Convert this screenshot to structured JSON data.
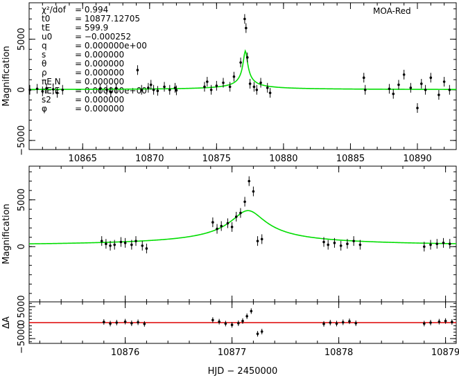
{
  "chart_data": [
    {
      "type": "scatter",
      "panel": "top",
      "label": "MOA-Red",
      "ylabel": "Magnification",
      "xlim": [
        10861.0,
        10892.9
      ],
      "ylim": [
        -5900,
        8600
      ],
      "xticks": [
        10865,
        10870,
        10875,
        10880,
        10885,
        10890
      ],
      "yticks": [
        -5000,
        0,
        5000
      ],
      "params": [
        {
          "name": "χ²/dof",
          "value": "= 0.994"
        },
        {
          "name": "t0",
          "value": "= 10877.12705"
        },
        {
          "name": "tE",
          "value": "= 599.9"
        },
        {
          "name": "u0",
          "value": "= −0.000252"
        },
        {
          "name": "q",
          "value": "= 0.000000e+00"
        },
        {
          "name": "s",
          "value": "= 0.000000"
        },
        {
          "name": "θ",
          "value": "= 0.000000"
        },
        {
          "name": "ρ",
          "value": "= 0.000000"
        },
        {
          "name": "πE,N",
          "value": "= 0.000000"
        },
        {
          "name": "πE,E",
          "value": "= 0.000000e+00"
        },
        {
          "name": "s2",
          "value": "= 0.000000"
        },
        {
          "name": "φ",
          "value": "= 0.000000"
        }
      ],
      "model": {
        "t0": 10877.15,
        "peak": 3850,
        "baseline": 0,
        "tau": 0.45
      },
      "series": [
        {
          "name": "",
          "points": [
            [
              10861.05,
              0
            ],
            [
              10861.6,
              100
            ],
            [
              10862.0,
              -150
            ],
            [
              10862.3,
              150
            ],
            [
              10862.8,
              50
            ],
            [
              10863.1,
              -300
            ],
            [
              10863.5,
              0
            ],
            [
              10866.3,
              100
            ],
            [
              10866.8,
              0
            ],
            [
              10867.1,
              -200
            ],
            [
              10867.5,
              150
            ],
            [
              10869.1,
              1950
            ],
            [
              10869.4,
              0
            ],
            [
              10869.9,
              200
            ],
            [
              10870.1,
              500
            ],
            [
              10870.3,
              0
            ],
            [
              10870.6,
              -100
            ],
            [
              10871.1,
              300
            ],
            [
              10871.5,
              0
            ],
            [
              10871.9,
              200
            ],
            [
              10872.0,
              -50
            ],
            [
              10874.1,
              300
            ],
            [
              10874.3,
              800
            ],
            [
              10874.6,
              0
            ],
            [
              10875.0,
              400
            ],
            [
              10875.5,
              700
            ],
            [
              10876.0,
              300
            ],
            [
              10876.3,
              1300
            ],
            [
              10876.8,
              2700
            ],
            [
              10877.1,
              7000
            ],
            [
              10877.2,
              6100
            ],
            [
              10877.3,
              3200
            ],
            [
              10877.5,
              600
            ],
            [
              10877.8,
              300
            ],
            [
              10878.0,
              0
            ],
            [
              10878.3,
              700
            ],
            [
              10878.8,
              200
            ],
            [
              10879.0,
              -300
            ],
            [
              10886.0,
              1200
            ],
            [
              10886.1,
              0
            ],
            [
              10887.9,
              100
            ],
            [
              10888.2,
              -400
            ],
            [
              10888.6,
              500
            ],
            [
              10889.0,
              1500
            ],
            [
              10889.5,
              200
            ],
            [
              10890.0,
              -1800
            ],
            [
              10890.3,
              600
            ],
            [
              10890.6,
              0
            ],
            [
              10891.0,
              1200
            ],
            [
              10891.6,
              -500
            ],
            [
              10892.0,
              800
            ],
            [
              10892.4,
              0
            ]
          ]
        }
      ]
    },
    {
      "type": "scatter",
      "panel": "middle",
      "ylabel": "Magnification",
      "xlim": [
        10875.1,
        10879.1
      ],
      "ylim": [
        -5900,
        8600
      ],
      "yticks": [
        0,
        5000
      ],
      "model": {
        "t0": 10877.15,
        "peak": 3850,
        "baseline": 0,
        "tau": 0.45
      },
      "series": [
        {
          "name": "",
          "points": [
            [
              10875.78,
              600
            ],
            [
              10875.82,
              300
            ],
            [
              10875.86,
              100
            ],
            [
              10875.9,
              200
            ],
            [
              10875.96,
              500
            ],
            [
              10876.0,
              400
            ],
            [
              10876.06,
              200
            ],
            [
              10876.1,
              600
            ],
            [
              10876.16,
              100
            ],
            [
              10876.2,
              -200
            ],
            [
              10876.82,
              2600
            ],
            [
              10876.86,
              1900
            ],
            [
              10876.9,
              2200
            ],
            [
              10876.96,
              2500
            ],
            [
              10877.0,
              2100
            ],
            [
              10877.04,
              3200
            ],
            [
              10877.08,
              3600
            ],
            [
              10877.12,
              4800
            ],
            [
              10877.16,
              7000
            ],
            [
              10877.2,
              5900
            ],
            [
              10877.24,
              600
            ],
            [
              10877.28,
              800
            ],
            [
              10877.86,
              500
            ],
            [
              10877.9,
              200
            ],
            [
              10877.96,
              400
            ],
            [
              10878.02,
              100
            ],
            [
              10878.08,
              300
            ],
            [
              10878.14,
              600
            ],
            [
              10878.2,
              200
            ],
            [
              10878.8,
              0
            ],
            [
              10878.86,
              200
            ],
            [
              10878.92,
              300
            ],
            [
              10878.98,
              400
            ],
            [
              10879.04,
              300
            ]
          ]
        }
      ]
    },
    {
      "type": "scatter",
      "panel": "residual",
      "ylabel": "ΔA",
      "xlabel": "HJD − 2450000",
      "xlim": [
        10875.1,
        10879.1
      ],
      "ylim": [
        -6500,
        6500
      ],
      "xticks": [
        10876,
        10877,
        10878,
        10879
      ],
      "yticks": [
        -5000,
        0,
        5000
      ],
      "ytick_labels": [
        "−5000",
        "0",
        "5000"
      ],
      "series": [
        {
          "name": "",
          "points": [
            [
              10875.8,
              200
            ],
            [
              10875.86,
              -300
            ],
            [
              10875.92,
              0
            ],
            [
              10876.0,
              300
            ],
            [
              10876.06,
              -200
            ],
            [
              10876.12,
              100
            ],
            [
              10876.18,
              -400
            ],
            [
              10876.82,
              800
            ],
            [
              10876.88,
              300
            ],
            [
              10876.94,
              -300
            ],
            [
              10877.0,
              -700
            ],
            [
              10877.06,
              -200
            ],
            [
              10877.1,
              500
            ],
            [
              10877.14,
              2000
            ],
            [
              10877.18,
              3600
            ],
            [
              10877.24,
              -3500
            ],
            [
              10877.28,
              -2800
            ],
            [
              10877.86,
              -400
            ],
            [
              10877.92,
              0
            ],
            [
              10877.98,
              -300
            ],
            [
              10878.04,
              100
            ],
            [
              10878.1,
              400
            ],
            [
              10878.16,
              -200
            ],
            [
              10878.8,
              -300
            ],
            [
              10878.86,
              0
            ],
            [
              10878.94,
              300
            ],
            [
              10879.0,
              500
            ],
            [
              10879.06,
              200
            ]
          ]
        }
      ]
    }
  ],
  "colors": {
    "model": "#00dd00",
    "residual_line": "#dd0000",
    "points": "#000000",
    "axes": "#000000"
  }
}
